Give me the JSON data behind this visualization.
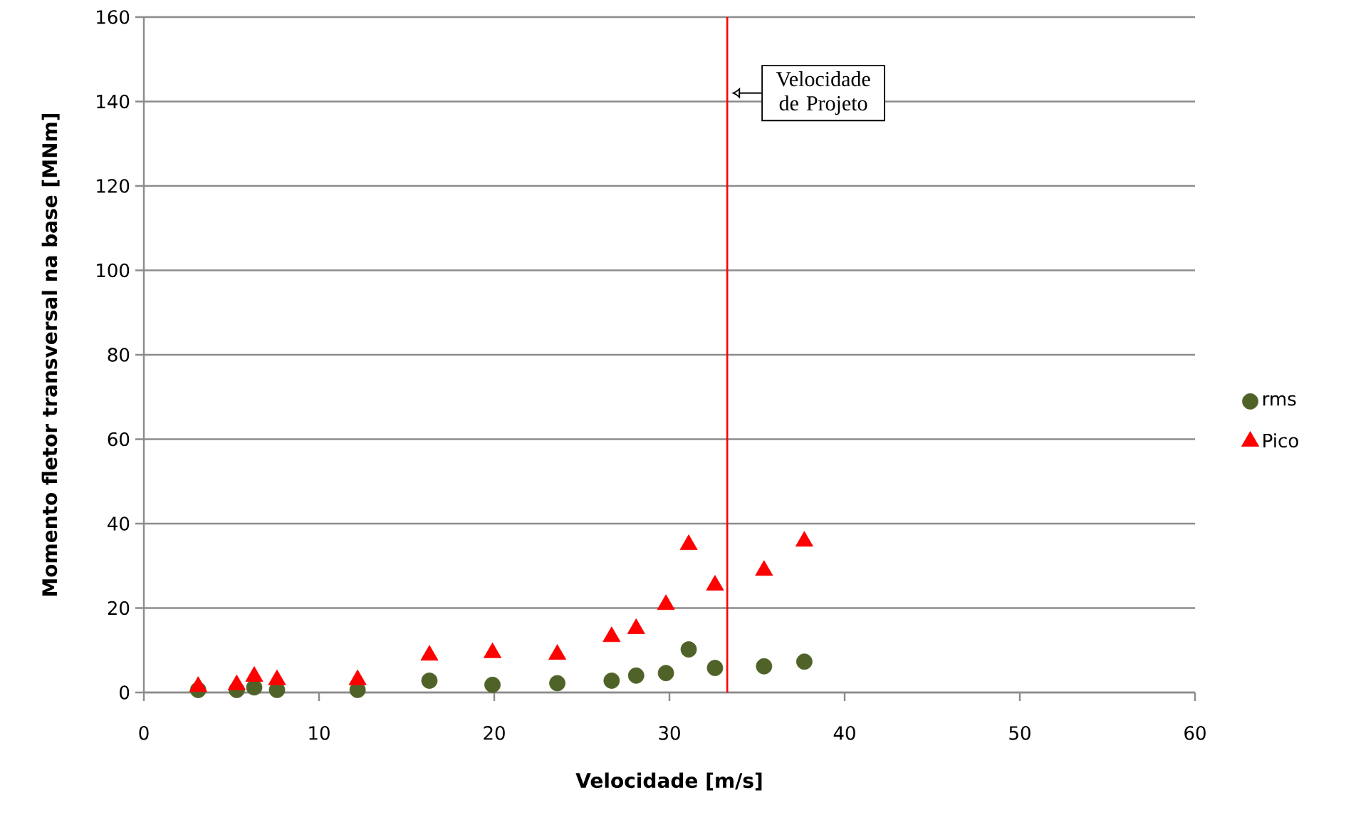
{
  "chart_data": {
    "type": "scatter",
    "xlabel": "Velocidade [m/s]",
    "ylabel": "Momento fletor transversal na base  [MNm]",
    "x": [
      3.1,
      5.3,
      6.3,
      7.6,
      12.2,
      16.3,
      19.9,
      23.6,
      26.7,
      28.1,
      29.8,
      31.1,
      32.6,
      35.4,
      37.7
    ],
    "series": [
      {
        "name": "rms",
        "color": "#4f6228",
        "marker": "circle",
        "values": [
          0.6,
          0.6,
          1.2,
          0.6,
          0.6,
          2.8,
          1.8,
          2.2,
          2.8,
          4.0,
          4.6,
          10.2,
          5.8,
          6.2,
          7.3
        ]
      },
      {
        "name": "Pico",
        "color": "#ff0000",
        "marker": "triangle",
        "values": [
          1.4,
          1.8,
          3.8,
          3.0,
          3.0,
          8.8,
          9.4,
          9.0,
          13.2,
          15.1,
          20.8,
          35.0,
          25.4,
          28.9,
          35.8
        ]
      }
    ],
    "xlim": [
      0,
      60
    ],
    "xticks": [
      0,
      10,
      20,
      30,
      40,
      50,
      60
    ],
    "ylim": [
      0,
      160
    ],
    "yticks": [
      0,
      20,
      40,
      60,
      80,
      100,
      120,
      140,
      160
    ],
    "grid": "y",
    "legend": "right",
    "ref_lines": [
      {
        "axis": "x",
        "value": 33.3,
        "color": "#ff0000"
      }
    ],
    "annotations": [
      {
        "text": "Velocidade de Projeto",
        "x": 33.3,
        "y": 142
      }
    ]
  }
}
